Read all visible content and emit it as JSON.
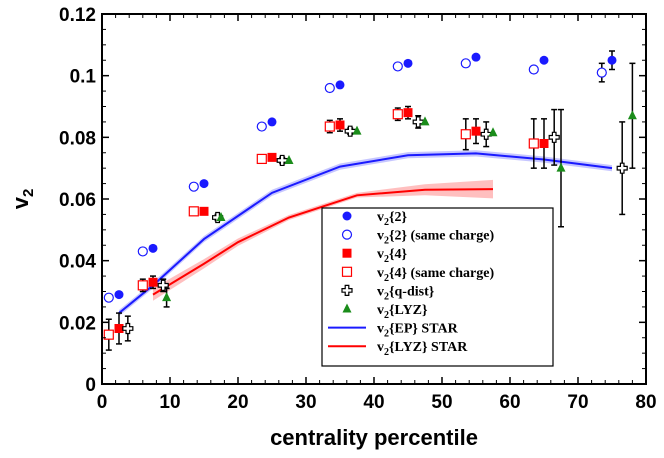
{
  "chart_data": {
    "type": "scatter",
    "xlabel": "centrality percentile",
    "ylabel": "v",
    "ylabel_sub": "2",
    "xlim": [
      0,
      80
    ],
    "ylim": [
      0,
      0.12
    ],
    "xticks": [
      0,
      10,
      20,
      30,
      40,
      50,
      60,
      70,
      80
    ],
    "yticks": [
      0,
      0.02,
      0.04,
      0.06,
      0.08,
      0.1,
      0.12
    ],
    "xtick_labels": [
      "0",
      "10",
      "20",
      "30",
      "40",
      "50",
      "60",
      "70",
      "80"
    ],
    "ytick_labels": [
      "0",
      "0.02",
      "0.04",
      "0.06",
      "0.08",
      "0.1",
      "0.12"
    ],
    "legend_position": "lower-right",
    "series": [
      {
        "name_main": "v",
        "name_sub": "2",
        "name_rest": "{2}",
        "marker": "filled-circle",
        "color": "#1a1aff",
        "points": [
          [
            2.5,
            0.029
          ],
          [
            7.5,
            0.044
          ],
          [
            15,
            0.065
          ],
          [
            25,
            0.085
          ],
          [
            35,
            0.097
          ],
          [
            45,
            0.104
          ],
          [
            55,
            0.106
          ],
          [
            65,
            0.105
          ],
          [
            75,
            0.105
          ]
        ],
        "errors": [
          0,
          0,
          0,
          0,
          0,
          0,
          0,
          0,
          0.003
        ]
      },
      {
        "name_main": "v",
        "name_sub": "2",
        "name_rest": "{2} (same charge)",
        "marker": "open-circle",
        "color": "#1a1aff",
        "points": [
          [
            1,
            0.028
          ],
          [
            6,
            0.043
          ],
          [
            13.5,
            0.064
          ],
          [
            23.5,
            0.0835
          ],
          [
            33.5,
            0.096
          ],
          [
            43.5,
            0.103
          ],
          [
            53.5,
            0.104
          ],
          [
            63.5,
            0.102
          ],
          [
            73.5,
            0.101
          ]
        ],
        "errors": [
          0,
          0,
          0,
          0,
          0,
          0,
          0,
          0,
          0.003
        ]
      },
      {
        "name_main": "v",
        "name_sub": "2",
        "name_rest": "{4}",
        "marker": "filled-square",
        "color": "#ff0000",
        "points": [
          [
            2.5,
            0.018
          ],
          [
            7.5,
            0.033
          ],
          [
            15,
            0.056
          ],
          [
            25,
            0.0735
          ],
          [
            35,
            0.084
          ],
          [
            45,
            0.088
          ],
          [
            55,
            0.082
          ],
          [
            65,
            0.078
          ]
        ],
        "errors": [
          0.005,
          0.002,
          0.001,
          0.001,
          0.002,
          0.002,
          0.004,
          0.008
        ]
      },
      {
        "name_main": "v",
        "name_sub": "2",
        "name_rest": "{4} (same charge)",
        "marker": "open-square",
        "color": "#ff0000",
        "points": [
          [
            1,
            0.016
          ],
          [
            6,
            0.032
          ],
          [
            13.5,
            0.056
          ],
          [
            23.5,
            0.073
          ],
          [
            33.5,
            0.0835
          ],
          [
            43.5,
            0.0875
          ],
          [
            53.5,
            0.081
          ],
          [
            63.5,
            0.078
          ]
        ],
        "errors": [
          0.005,
          0.002,
          0.001,
          0.001,
          0.002,
          0.002,
          0.005,
          0.008
        ]
      },
      {
        "name_main": "v",
        "name_sub": "2",
        "name_rest": "{q-dist}",
        "marker": "open-cross",
        "color": "#000000",
        "points": [
          [
            3.8,
            0.018
          ],
          [
            9,
            0.032
          ],
          [
            17,
            0.054
          ],
          [
            26.5,
            0.0725
          ],
          [
            36.5,
            0.082
          ],
          [
            46.5,
            0.085
          ],
          [
            56.5,
            0.081
          ],
          [
            66.5,
            0.08
          ],
          [
            76.5,
            0.07
          ]
        ],
        "errors": [
          0.004,
          0.002,
          0.001,
          0.001,
          0.001,
          0.002,
          0.004,
          0.009,
          0.015
        ]
      },
      {
        "name_main": "v",
        "name_sub": "2",
        "name_rest": "{LYZ}",
        "marker": "filled-triangle",
        "color": "#1a8c1a",
        "points": [
          [
            9.5,
            0.028
          ],
          [
            17.5,
            0.054
          ],
          [
            27.5,
            0.0725
          ],
          [
            37.5,
            0.082
          ],
          [
            47.5,
            0.085
          ],
          [
            57.5,
            0.0815
          ],
          [
            67.5,
            0.07
          ],
          [
            78,
            0.087
          ]
        ],
        "errors": [
          0.003,
          0,
          0,
          0,
          0,
          0,
          0.019,
          0.017
        ]
      },
      {
        "name_main": "v",
        "name_sub": "2",
        "name_rest": "{EP} STAR",
        "marker": "line",
        "color": "#1a1aff",
        "points": [
          [
            2.5,
            0.023
          ],
          [
            7.5,
            0.032
          ],
          [
            15,
            0.047
          ],
          [
            25,
            0.062
          ],
          [
            35,
            0.0705
          ],
          [
            45,
            0.0742
          ],
          [
            55,
            0.0748
          ],
          [
            65,
            0.0728
          ],
          [
            75,
            0.07
          ]
        ],
        "band": 0.001
      },
      {
        "name_main": "v",
        "name_sub": "2",
        "name_rest": "{LYZ} STAR",
        "marker": "line",
        "color": "#ff0000",
        "points": [
          [
            7.5,
            0.029
          ],
          [
            15,
            0.039
          ],
          [
            20,
            0.046
          ],
          [
            27.5,
            0.054
          ],
          [
            37.5,
            0.0612
          ],
          [
            47.5,
            0.063
          ],
          [
            57.5,
            0.0632
          ]
        ],
        "band_lo": [
          0.027,
          0.0375,
          0.0448,
          0.0532,
          0.0605,
          0.0612,
          0.0602
        ],
        "band_hi": [
          0.031,
          0.0405,
          0.0472,
          0.0548,
          0.062,
          0.0648,
          0.0662
        ]
      }
    ]
  }
}
